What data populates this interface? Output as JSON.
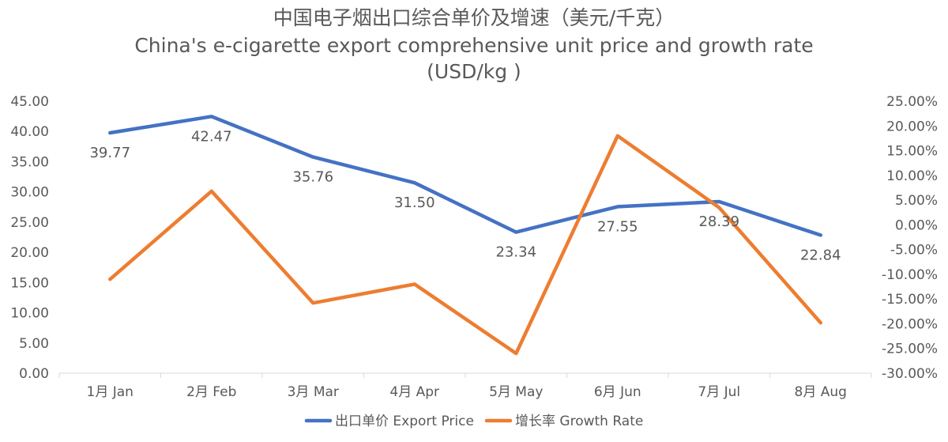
{
  "chart_data": {
    "type": "line",
    "title": "中国电子烟出口综合单价及增速（美元/千克）",
    "subtitle": "China's e-cigarette export comprehensive unit price and growth rate",
    "subtitle2": "(USD/kg )",
    "categories": [
      "1月 Jan",
      "2月 Feb",
      "3月 Mar",
      "4月 Apr",
      "5月 May",
      "6月 Jun",
      "7月 Jul",
      "8月 Aug"
    ],
    "series": [
      {
        "name": "出口单价 Export Price",
        "axis": "left",
        "color": "#4472C4",
        "values": [
          39.77,
          42.47,
          35.76,
          31.5,
          23.34,
          27.55,
          28.39,
          22.84
        ],
        "labels": [
          "39.77",
          "42.47",
          "35.76",
          "31.50",
          "23.34",
          "27.55",
          "28.39",
          "22.84"
        ]
      },
      {
        "name": "增长率 Growth Rate",
        "axis": "right",
        "color": "#ED7D31",
        "values": [
          -11.0,
          6.8,
          -15.8,
          -12.0,
          -26.0,
          18.0,
          3.5,
          -19.8
        ]
      }
    ],
    "y_left": {
      "min": 0,
      "max": 45,
      "step": 5,
      "ticks": [
        "0.00",
        "5.00",
        "10.00",
        "15.00",
        "20.00",
        "25.00",
        "30.00",
        "35.00",
        "40.00",
        "45.00"
      ]
    },
    "y_right": {
      "min": -30,
      "max": 25,
      "step": 5,
      "ticks": [
        "-30.00%",
        "-25.00%",
        "-20.00%",
        "-15.00%",
        "-10.00%",
        "-5.00%",
        "0.00%",
        "5.00%",
        "10.00%",
        "15.00%",
        "20.00%",
        "25.00%"
      ]
    },
    "grid": false,
    "legend_position": "bottom",
    "axis_color": "#D9D9D9",
    "text_color": "#595959"
  }
}
